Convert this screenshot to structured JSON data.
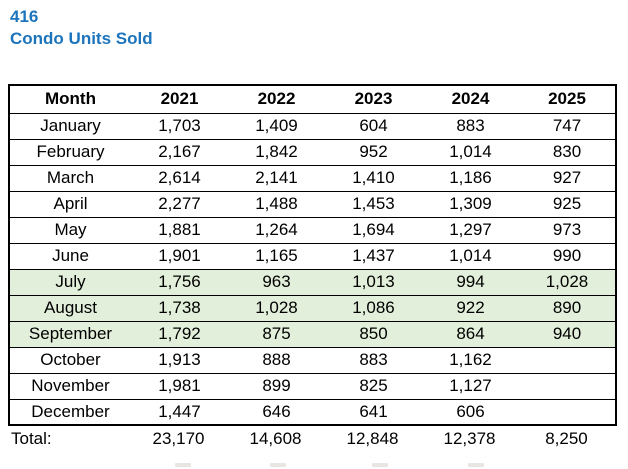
{
  "title": {
    "line1": "416",
    "line2": "Condo Units Sold"
  },
  "colors": {
    "title_blue": "#1c75bc",
    "highlight_green": "#e2efda",
    "border": "#000000",
    "text": "#000000"
  },
  "chart_data": {
    "type": "table",
    "title": "416 Condo Units Sold",
    "columns": [
      "Month",
      "2021",
      "2022",
      "2023",
      "2024",
      "2025"
    ],
    "highlighted_months": [
      "July",
      "August",
      "September"
    ],
    "rows": [
      {
        "month": "January",
        "values": [
          "1,703",
          "1,409",
          "604",
          "883",
          "747"
        ],
        "highlight": false
      },
      {
        "month": "February",
        "values": [
          "2,167",
          "1,842",
          "952",
          "1,014",
          "830"
        ],
        "highlight": false
      },
      {
        "month": "March",
        "values": [
          "2,614",
          "2,141",
          "1,410",
          "1,186",
          "927"
        ],
        "highlight": false
      },
      {
        "month": "April",
        "values": [
          "2,277",
          "1,488",
          "1,453",
          "1,309",
          "925"
        ],
        "highlight": false
      },
      {
        "month": "May",
        "values": [
          "1,881",
          "1,264",
          "1,694",
          "1,297",
          "973"
        ],
        "highlight": false
      },
      {
        "month": "June",
        "values": [
          "1,901",
          "1,165",
          "1,437",
          "1,014",
          "990"
        ],
        "highlight": false
      },
      {
        "month": "July",
        "values": [
          "1,756",
          "963",
          "1,013",
          "994",
          "1,028"
        ],
        "highlight": true
      },
      {
        "month": "August",
        "values": [
          "1,738",
          "1,028",
          "1,086",
          "922",
          "890"
        ],
        "highlight": true
      },
      {
        "month": "September",
        "values": [
          "1,792",
          "875",
          "850",
          "864",
          "940"
        ],
        "highlight": true
      },
      {
        "month": "October",
        "values": [
          "1,913",
          "888",
          "883",
          "1,162",
          ""
        ],
        "highlight": false
      },
      {
        "month": "November",
        "values": [
          "1,981",
          "899",
          "825",
          "1,127",
          ""
        ],
        "highlight": false
      },
      {
        "month": "December",
        "values": [
          "1,447",
          "646",
          "641",
          "606",
          ""
        ],
        "highlight": false
      }
    ],
    "total": {
      "label": "Total:",
      "values": [
        "23,170",
        "14,608",
        "12,848",
        "12,378",
        "8,250"
      ]
    }
  }
}
